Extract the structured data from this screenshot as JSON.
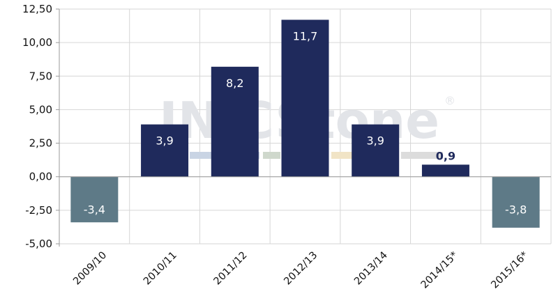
{
  "watermark": {
    "text": "IN   CStone",
    "symbol": "®"
  },
  "colors": {
    "positive": "#1f2a5c",
    "negative": "#5e7a87",
    "grid": "#d6d6d6",
    "axis": "#9a9a9a",
    "label_inside": "#ffffff",
    "label_outside": "#1f2a5c",
    "wm_blue": "#c9d4e4",
    "wm_green": "#cfd8cc",
    "wm_yellow": "#f1e4c6",
    "wm_grey": "#dcdcdc"
  },
  "chart_data": {
    "type": "bar",
    "title": "",
    "xlabel": "",
    "ylabel": "",
    "categories": [
      "2009/10",
      "2010/11",
      "2011/12",
      "2012/13",
      "2013/14",
      "2014/15*",
      "2015/16*"
    ],
    "values": [
      -3.4,
      3.9,
      8.2,
      11.7,
      3.9,
      0.9,
      -3.8
    ],
    "value_labels": [
      "-3,4",
      "3,9",
      "8,2",
      "11,7",
      "3,9",
      "0,9",
      "-3,8"
    ],
    "yticks": [
      12.5,
      10.0,
      7.5,
      5.0,
      2.5,
      0.0,
      -2.5,
      -5.0
    ],
    "ytick_labels": [
      "12,50",
      "10,00",
      "7,50",
      "5,00",
      "2,50",
      "0,00",
      "-2,50",
      "-5,00"
    ],
    "ylim": [
      -5,
      12.5
    ],
    "grid": true,
    "legend": "none"
  }
}
